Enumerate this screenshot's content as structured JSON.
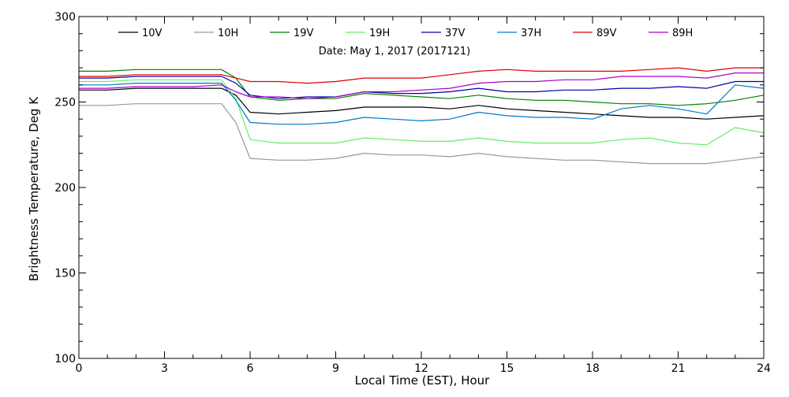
{
  "chart_data": {
    "type": "line",
    "title": "Date: May  1, 2017 (2017121)",
    "xlabel": "Local Time (EST), Hour",
    "ylabel": "Brightness Temperature, Deg K",
    "xlim": [
      0,
      24
    ],
    "ylim": [
      100,
      300
    ],
    "x_ticks": [
      0,
      3,
      6,
      9,
      12,
      15,
      18,
      21,
      24
    ],
    "y_ticks": [
      100,
      150,
      200,
      250,
      300
    ],
    "grid": false,
    "legend_position": "top",
    "x": [
      0,
      1,
      2,
      3,
      4,
      5,
      5.5,
      6,
      7,
      8,
      9,
      10,
      11,
      12,
      13,
      14,
      15,
      16,
      17,
      18,
      19,
      20,
      21,
      22,
      23,
      24
    ],
    "series": [
      {
        "name": "10V",
        "color": "#000000",
        "values": [
          257,
          257,
          258,
          258,
          258,
          258,
          254,
          244,
          243,
          244,
          245,
          247,
          247,
          247,
          246,
          248,
          246,
          245,
          244,
          243,
          242,
          241,
          241,
          240,
          241,
          242
        ]
      },
      {
        "name": "10H",
        "color": "#999999",
        "values": [
          248,
          248,
          249,
          249,
          249,
          249,
          238,
          217,
          216,
          216,
          217,
          220,
          219,
          219,
          218,
          220,
          218,
          217,
          216,
          216,
          215,
          214,
          214,
          214,
          216,
          218
        ]
      },
      {
        "name": "19V",
        "color": "#008000",
        "values": [
          268,
          268,
          269,
          269,
          269,
          269,
          264,
          253,
          251,
          252,
          252,
          255,
          254,
          253,
          252,
          254,
          252,
          251,
          251,
          250,
          249,
          249,
          248,
          249,
          251,
          254
        ]
      },
      {
        "name": "19H",
        "color": "#66ee66",
        "values": [
          262,
          262,
          263,
          263,
          263,
          263,
          252,
          228,
          226,
          226,
          226,
          229,
          228,
          227,
          227,
          229,
          227,
          226,
          226,
          226,
          228,
          229,
          226,
          225,
          235,
          232
        ]
      },
      {
        "name": "37V",
        "color": "#0000aa",
        "values": [
          264,
          264,
          265,
          265,
          265,
          265,
          261,
          254,
          252,
          253,
          253,
          256,
          255,
          255,
          256,
          258,
          256,
          256,
          257,
          257,
          258,
          258,
          259,
          258,
          262,
          262
        ]
      },
      {
        "name": "37H",
        "color": "#0077cc",
        "values": [
          260,
          260,
          261,
          261,
          261,
          261,
          251,
          238,
          237,
          237,
          238,
          241,
          240,
          239,
          240,
          244,
          242,
          241,
          241,
          240,
          246,
          248,
          246,
          243,
          260,
          258
        ]
      },
      {
        "name": "89V",
        "color": "#dd0000",
        "values": [
          265,
          265,
          266,
          266,
          266,
          266,
          264,
          262,
          262,
          261,
          262,
          264,
          264,
          264,
          266,
          268,
          269,
          268,
          268,
          268,
          268,
          269,
          270,
          268,
          270,
          270
        ]
      },
      {
        "name": "89H",
        "color": "#aa00cc",
        "values": [
          258,
          258,
          259,
          259,
          259,
          260,
          256,
          253,
          253,
          252,
          253,
          256,
          256,
          257,
          258,
          261,
          262,
          262,
          263,
          263,
          265,
          265,
          265,
          264,
          267,
          267
        ]
      }
    ]
  }
}
